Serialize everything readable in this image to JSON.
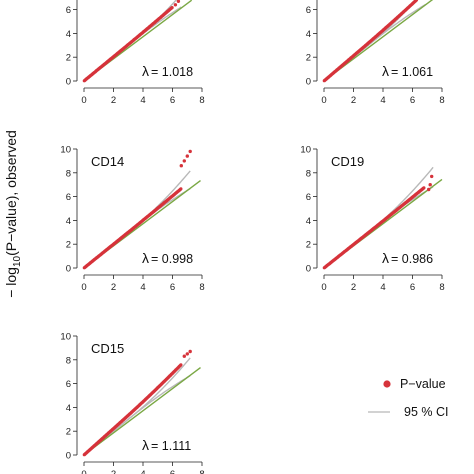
{
  "chart_data": {
    "type": "scatter",
    "ylabel_parts": {
      "pre": "− log",
      "sub": "10",
      "post": "(P−value), observed"
    },
    "axis_ticks": [
      0,
      2,
      4,
      6,
      8
    ],
    "xlim": [
      0,
      8
    ],
    "ylim": [
      0,
      10
    ],
    "lambda_symbol": "λ",
    "legend": {
      "points_label": "P−value",
      "ci_label": "95 % CI"
    },
    "colors": {
      "points": "#d6333b",
      "ci": "#b8b8b8",
      "expected": "#7aa844",
      "axis": "#222222"
    },
    "panels": [
      {
        "id": "panel-top-left",
        "title": "",
        "lambda_value": "= 1.018",
        "max_x": 6.6,
        "slope": 1.02,
        "tail": [
          [
            6.2,
            6.4
          ],
          [
            6.4,
            6.7
          ],
          [
            6.6,
            7.0
          ]
        ]
      },
      {
        "id": "panel-top-right",
        "title": "",
        "lambda_value": "= 1.061",
        "max_x": 6.9,
        "slope": 1.06,
        "tail": [
          [
            6.5,
            7.0
          ],
          [
            6.7,
            7.2
          ],
          [
            6.9,
            7.4
          ]
        ]
      },
      {
        "id": "panel-cd14",
        "title": "CD14",
        "lambda_value": "= 0.998",
        "max_x": 7.2,
        "slope": 1.0,
        "tail": [
          [
            6.6,
            8.6
          ],
          [
            6.8,
            9.0
          ],
          [
            7.0,
            9.4
          ],
          [
            7.2,
            9.8
          ]
        ]
      },
      {
        "id": "panel-cd19",
        "title": "CD19",
        "lambda_value": "= 0.986",
        "max_x": 7.4,
        "slope": 0.986,
        "tail": [
          [
            7.1,
            6.6
          ],
          [
            7.2,
            7.0
          ],
          [
            7.3,
            7.7
          ]
        ]
      },
      {
        "id": "panel-cd15",
        "title": "CD15",
        "lambda_value": "= 1.111",
        "max_x": 7.2,
        "slope": 1.11,
        "tail": [
          [
            6.8,
            8.3
          ],
          [
            7.0,
            8.5
          ],
          [
            7.2,
            8.7
          ]
        ]
      }
    ]
  }
}
